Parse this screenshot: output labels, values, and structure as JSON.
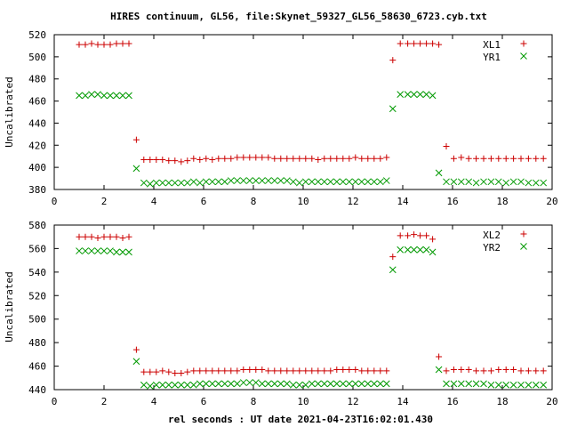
{
  "title": "HIRES continuum, GL56, file:Skynet_59327_GL56_58630_6723.cyb.txt",
  "xlabel": "rel seconds : UT date 2021-04-23T16:02:01.430",
  "colors": {
    "plus": "#cc0000",
    "cross": "#009900",
    "axis": "#000000"
  },
  "chart_data": [
    {
      "type": "scatter",
      "ylabel": "Uncalibrated",
      "xlim": [
        0,
        20
      ],
      "ylim": [
        380,
        520
      ],
      "xticks": [
        0,
        2,
        4,
        6,
        8,
        10,
        12,
        14,
        16,
        18,
        20
      ],
      "yticks": [
        380,
        400,
        420,
        440,
        460,
        480,
        500,
        520
      ],
      "legend_position": "top-right",
      "series": [
        {
          "name": "XL1",
          "marker": "plus",
          "x": [
            1.0,
            1.25,
            1.5,
            1.75,
            2.0,
            2.25,
            2.5,
            2.75,
            3.0,
            3.3,
            3.6,
            3.85,
            4.1,
            4.35,
            4.6,
            4.85,
            5.1,
            5.35,
            5.6,
            5.85,
            6.1,
            6.35,
            6.6,
            6.85,
            7.1,
            7.35,
            7.6,
            7.85,
            8.1,
            8.35,
            8.6,
            8.85,
            9.1,
            9.35,
            9.6,
            9.85,
            10.1,
            10.35,
            10.6,
            10.85,
            11.1,
            11.35,
            11.6,
            11.85,
            12.1,
            12.35,
            12.6,
            12.85,
            13.1,
            13.35,
            13.6,
            13.9,
            14.2,
            14.45,
            14.7,
            14.95,
            15.2,
            15.45,
            15.75,
            16.05,
            16.35,
            16.65,
            16.95,
            17.25,
            17.55,
            17.85,
            18.15,
            18.45,
            18.75,
            19.05,
            19.35,
            19.65
          ],
          "y": [
            511,
            511,
            512,
            511,
            511,
            511,
            512,
            512,
            512,
            425,
            407,
            407,
            407,
            407,
            406,
            406,
            405,
            406,
            408,
            407,
            408,
            407,
            408,
            408,
            408,
            409,
            409,
            409,
            409,
            409,
            409,
            408,
            408,
            408,
            408,
            408,
            408,
            408,
            407,
            408,
            408,
            408,
            408,
            408,
            409,
            408,
            408,
            408,
            408,
            409,
            497,
            512,
            512,
            512,
            512,
            512,
            512,
            511,
            419,
            408,
            409,
            408,
            408,
            408,
            408,
            408,
            408,
            408,
            408,
            408,
            408,
            408
          ]
        },
        {
          "name": "YR1",
          "marker": "cross",
          "x": [
            1.0,
            1.25,
            1.5,
            1.75,
            2.0,
            2.25,
            2.5,
            2.75,
            3.0,
            3.3,
            3.6,
            3.85,
            4.1,
            4.35,
            4.6,
            4.85,
            5.1,
            5.35,
            5.6,
            5.85,
            6.1,
            6.35,
            6.6,
            6.85,
            7.1,
            7.35,
            7.6,
            7.85,
            8.1,
            8.35,
            8.6,
            8.85,
            9.1,
            9.35,
            9.6,
            9.85,
            10.1,
            10.35,
            10.6,
            10.85,
            11.1,
            11.35,
            11.6,
            11.85,
            12.1,
            12.35,
            12.6,
            12.85,
            13.1,
            13.35,
            13.6,
            13.9,
            14.2,
            14.45,
            14.7,
            14.95,
            15.2,
            15.45,
            15.75,
            16.05,
            16.35,
            16.65,
            16.95,
            17.25,
            17.55,
            17.85,
            18.15,
            18.45,
            18.75,
            19.05,
            19.35,
            19.65
          ],
          "y": [
            465,
            465,
            466,
            466,
            465,
            465,
            465,
            465,
            465,
            399,
            386,
            385,
            386,
            386,
            386,
            386,
            386,
            386,
            387,
            386,
            387,
            387,
            387,
            387,
            388,
            388,
            388,
            388,
            388,
            388,
            388,
            388,
            388,
            388,
            387,
            386,
            387,
            387,
            387,
            387,
            387,
            387,
            387,
            387,
            387,
            387,
            387,
            387,
            387,
            388,
            453,
            466,
            466,
            466,
            466,
            466,
            465,
            395,
            387,
            387,
            387,
            387,
            386,
            387,
            387,
            387,
            386,
            387,
            387,
            386,
            386,
            386
          ]
        }
      ]
    },
    {
      "type": "scatter",
      "ylabel": "Uncalibrated",
      "xlim": [
        0,
        20
      ],
      "ylim": [
        440,
        580
      ],
      "xticks": [
        0,
        2,
        4,
        6,
        8,
        10,
        12,
        14,
        16,
        18,
        20
      ],
      "yticks": [
        440,
        460,
        480,
        500,
        520,
        540,
        560,
        580
      ],
      "legend_position": "top-right",
      "series": [
        {
          "name": "XL2",
          "marker": "plus",
          "x": [
            1.0,
            1.25,
            1.5,
            1.75,
            2.0,
            2.25,
            2.5,
            2.75,
            3.0,
            3.3,
            3.6,
            3.85,
            4.1,
            4.35,
            4.6,
            4.85,
            5.1,
            5.35,
            5.6,
            5.85,
            6.1,
            6.35,
            6.6,
            6.85,
            7.1,
            7.35,
            7.6,
            7.85,
            8.1,
            8.35,
            8.6,
            8.85,
            9.1,
            9.35,
            9.6,
            9.85,
            10.1,
            10.35,
            10.6,
            10.85,
            11.1,
            11.35,
            11.6,
            11.85,
            12.1,
            12.35,
            12.6,
            12.85,
            13.1,
            13.35,
            13.6,
            13.9,
            14.2,
            14.45,
            14.7,
            14.95,
            15.2,
            15.45,
            15.75,
            16.05,
            16.35,
            16.65,
            16.95,
            17.25,
            17.55,
            17.85,
            18.15,
            18.45,
            18.75,
            19.05,
            19.35,
            19.65
          ],
          "y": [
            570,
            570,
            570,
            569,
            570,
            570,
            570,
            569,
            570,
            474,
            455,
            455,
            455,
            456,
            455,
            454,
            454,
            455,
            456,
            456,
            456,
            456,
            456,
            456,
            456,
            456,
            457,
            457,
            457,
            457,
            456,
            456,
            456,
            456,
            456,
            456,
            456,
            456,
            456,
            456,
            456,
            457,
            457,
            457,
            457,
            456,
            456,
            456,
            456,
            456,
            553,
            571,
            571,
            572,
            571,
            571,
            568,
            468,
            456,
            457,
            457,
            457,
            456,
            456,
            456,
            457,
            457,
            457,
            456,
            456,
            456,
            456
          ]
        },
        {
          "name": "YR2",
          "marker": "cross",
          "x": [
            1.0,
            1.25,
            1.5,
            1.75,
            2.0,
            2.25,
            2.5,
            2.75,
            3.0,
            3.3,
            3.6,
            3.85,
            4.1,
            4.35,
            4.6,
            4.85,
            5.1,
            5.35,
            5.6,
            5.85,
            6.1,
            6.35,
            6.6,
            6.85,
            7.1,
            7.35,
            7.6,
            7.85,
            8.1,
            8.35,
            8.6,
            8.85,
            9.1,
            9.35,
            9.6,
            9.85,
            10.1,
            10.35,
            10.6,
            10.85,
            11.1,
            11.35,
            11.6,
            11.85,
            12.1,
            12.35,
            12.6,
            12.85,
            13.1,
            13.35,
            13.6,
            13.9,
            14.2,
            14.45,
            14.7,
            14.95,
            15.2,
            15.45,
            15.75,
            16.05,
            16.35,
            16.65,
            16.95,
            17.25,
            17.55,
            17.85,
            18.15,
            18.45,
            18.75,
            19.05,
            19.35,
            19.65
          ],
          "y": [
            558,
            558,
            558,
            558,
            558,
            558,
            557,
            557,
            557,
            464,
            444,
            443,
            444,
            444,
            444,
            444,
            444,
            444,
            444,
            445,
            445,
            445,
            445,
            445,
            445,
            445,
            446,
            446,
            446,
            445,
            445,
            445,
            445,
            445,
            444,
            444,
            444,
            445,
            445,
            445,
            445,
            445,
            445,
            445,
            445,
            445,
            445,
            445,
            445,
            445,
            542,
            559,
            559,
            559,
            559,
            559,
            557,
            457,
            445,
            445,
            445,
            445,
            445,
            445,
            444,
            444,
            444,
            444,
            444,
            444,
            444,
            444
          ]
        }
      ]
    }
  ]
}
